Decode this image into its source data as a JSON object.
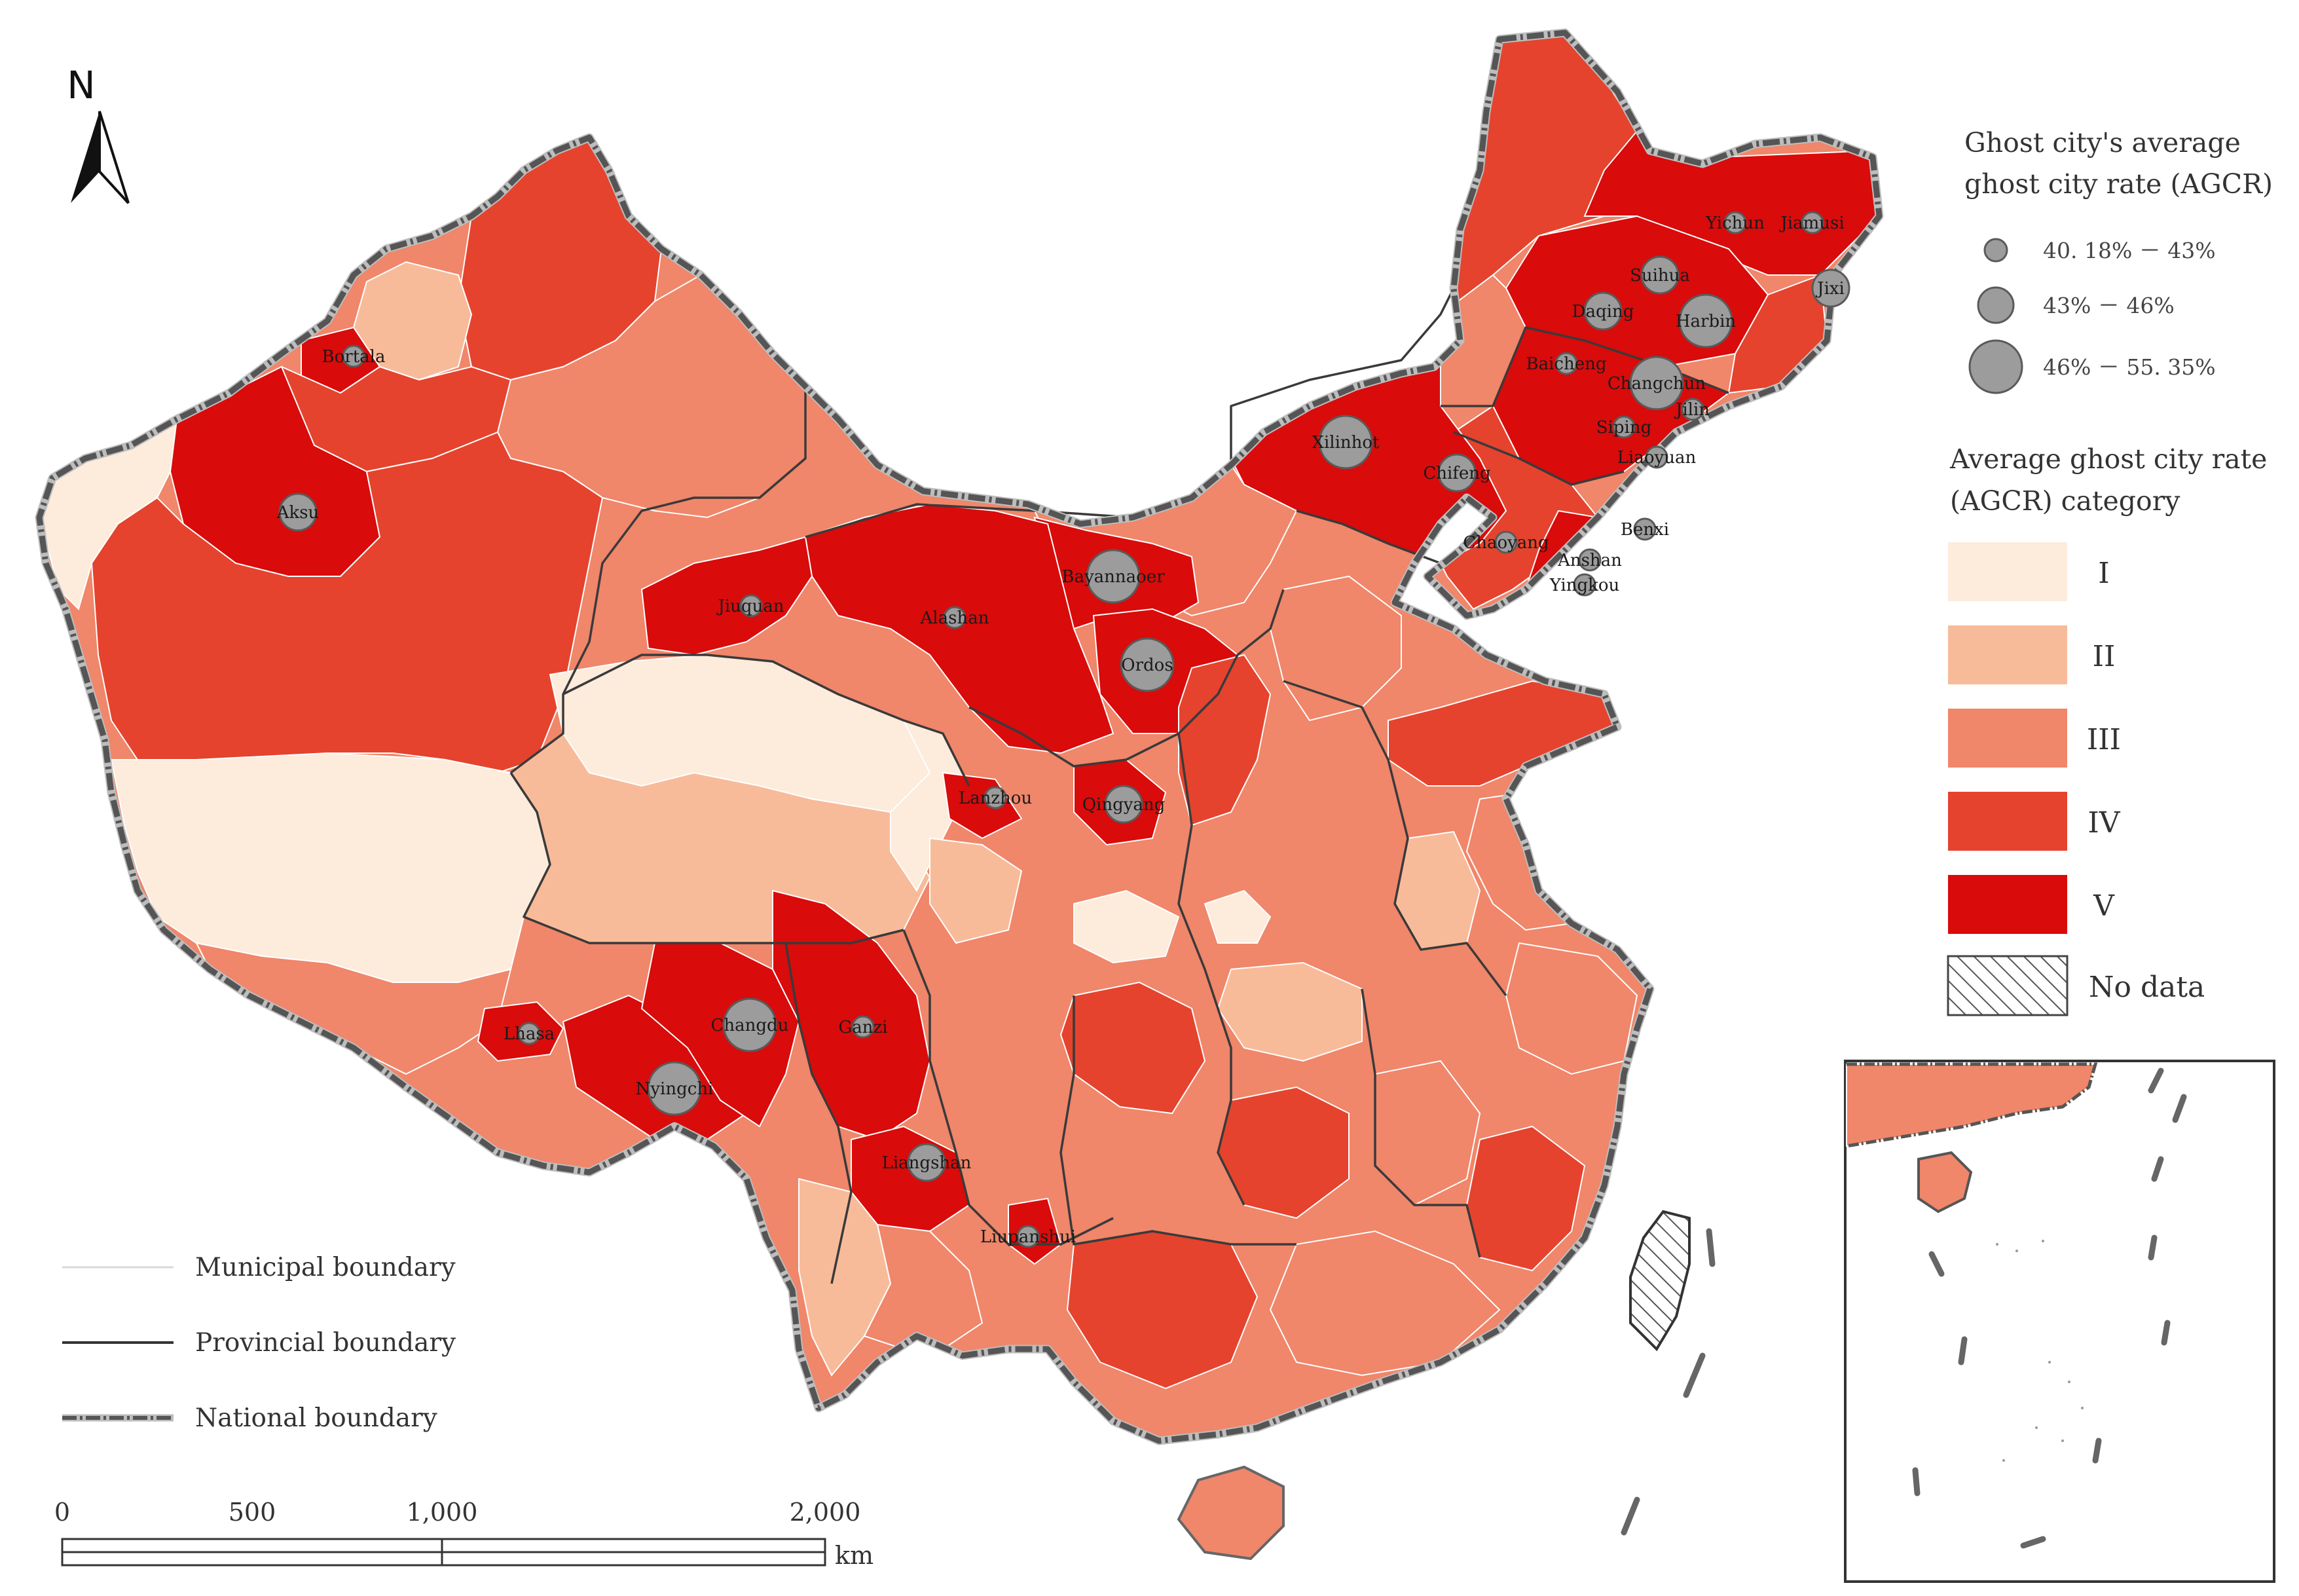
{
  "north_label": "N",
  "size_legend": {
    "title_line1": "Ghost city's average",
    "title_line2": "ghost city rate (AGCR)",
    "items": [
      {
        "label": "40. 18% － 43%",
        "size_class": "small"
      },
      {
        "label": "43% － 46%",
        "size_class": "medium"
      },
      {
        "label": "46% － 55. 35%",
        "size_class": "large"
      }
    ]
  },
  "category_legend": {
    "title_line1": "Average ghost city rate",
    "title_line2": "(AGCR) category",
    "items": [
      {
        "label": "I",
        "color": "#fdebdc"
      },
      {
        "label": "II",
        "color": "#f8bb9a"
      },
      {
        "label": "III",
        "color": "#f0866a"
      },
      {
        "label": "IV",
        "color": "#e5432e"
      },
      {
        "label": "V",
        "color": "#d90b0b"
      }
    ],
    "no_data_label": "No data"
  },
  "line_legend": {
    "municipal": "Municipal boundary",
    "provincial": "Provincial boundary",
    "national": "National boundary"
  },
  "scale_bar": {
    "ticks": [
      "0",
      "500",
      "1,000",
      "2,000"
    ],
    "unit": "km"
  },
  "cities": [
    {
      "name": "Yichun",
      "size": "small"
    },
    {
      "name": "Jiamusi",
      "size": "small"
    },
    {
      "name": "Suihua",
      "size": "medium"
    },
    {
      "name": "Jixi",
      "size": "medium"
    },
    {
      "name": "Daqing",
      "size": "medium"
    },
    {
      "name": "Harbin",
      "size": "large"
    },
    {
      "name": "Bortala",
      "size": "small"
    },
    {
      "name": "Baicheng",
      "size": "small"
    },
    {
      "name": "Changchun",
      "size": "large"
    },
    {
      "name": "Jilin",
      "size": "small"
    },
    {
      "name": "Siping",
      "size": "small"
    },
    {
      "name": "Liaoyuan",
      "size": "small"
    },
    {
      "name": "Xilinhot",
      "size": "large"
    },
    {
      "name": "Chifeng",
      "size": "medium"
    },
    {
      "name": "Aksu",
      "size": "medium"
    },
    {
      "name": "Benxi",
      "size": "small"
    },
    {
      "name": "Chaoyang",
      "size": "small"
    },
    {
      "name": "Anshan",
      "size": "small"
    },
    {
      "name": "Bayannaoer",
      "size": "large"
    },
    {
      "name": "Yingkou",
      "size": "small"
    },
    {
      "name": "Jiuquan",
      "size": "small"
    },
    {
      "name": "Alashan",
      "size": "small"
    },
    {
      "name": "Ordos",
      "size": "large"
    },
    {
      "name": "Lanzhou",
      "size": "small"
    },
    {
      "name": "Qingyang",
      "size": "medium"
    },
    {
      "name": "Changdu",
      "size": "large"
    },
    {
      "name": "Ganzi",
      "size": "small"
    },
    {
      "name": "Lhasa",
      "size": "small"
    },
    {
      "name": "Nyingchi",
      "size": "large"
    },
    {
      "name": "Liangshan",
      "size": "medium"
    },
    {
      "name": "Liupanshui",
      "size": "small"
    }
  ]
}
